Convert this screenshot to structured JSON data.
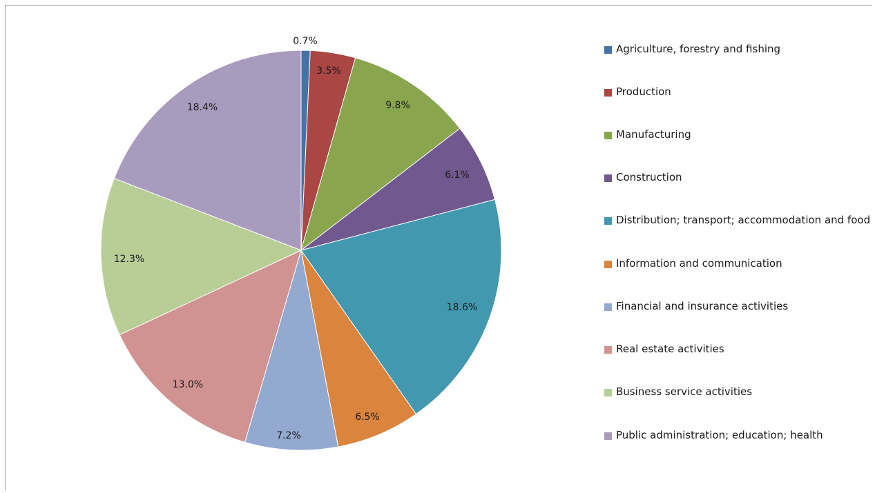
{
  "chart_data": {
    "type": "pie",
    "title": "",
    "slices": [
      {
        "label": "Agriculture, forestry and fishing",
        "value": 0.7,
        "value_label": "0.7%",
        "color": "#4572a7"
      },
      {
        "label": "Production",
        "value": 3.5,
        "value_label": "3.5%",
        "color": "#aa4643"
      },
      {
        "label": "Manufacturing",
        "value": 9.8,
        "value_label": "9.8%",
        "color": "#89a54e"
      },
      {
        "label": "Construction",
        "value": 6.1,
        "value_label": "6.1%",
        "color": "#71588f"
      },
      {
        "label": "Distribution; transport; accommodation and food",
        "value": 18.6,
        "value_label": "18.6%",
        "color": "#4198af"
      },
      {
        "label": "Information and communication",
        "value": 6.5,
        "value_label": "6.5%",
        "color": "#db843d"
      },
      {
        "label": "Financial and insurance activities",
        "value": 7.2,
        "value_label": "7.2%",
        "color": "#93a9cf"
      },
      {
        "label": "Real estate activities",
        "value": 13.0,
        "value_label": "13.0%",
        "color": "#d19392"
      },
      {
        "label": "Business service activities",
        "value": 12.3,
        "value_label": "12.3%",
        "color": "#b9cd96"
      },
      {
        "label": "Public administration; education; health",
        "value": 18.4,
        "value_label": "18.4%",
        "color": "#a99bbd"
      }
    ],
    "legend_position": "right",
    "start_angle": "12 o'clock",
    "direction": "clockwise"
  }
}
